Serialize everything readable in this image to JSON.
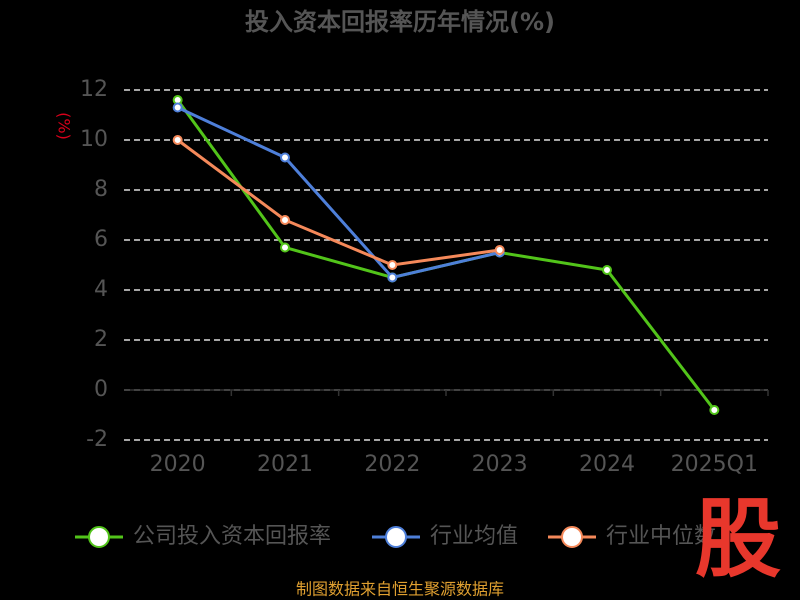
{
  "chart_data": {
    "type": "line",
    "title": "投入资本回报率历年情况(%)",
    "y_label": "(%)",
    "categories": [
      "2020",
      "2021",
      "2022",
      "2023",
      "2024",
      "2025Q1"
    ],
    "series": [
      {
        "name": "公司投入资本回报率",
        "color": "#52c41a",
        "values": [
          11.6,
          5.7,
          4.5,
          5.5,
          4.8,
          -0.8
        ]
      },
      {
        "name": "行业均值",
        "color": "#4e7fd9",
        "values": [
          11.3,
          9.3,
          4.5,
          5.5,
          null,
          null
        ]
      },
      {
        "name": "行业中位数",
        "color": "#f5895a",
        "values": [
          10.0,
          6.8,
          5.0,
          5.6,
          null,
          null
        ]
      }
    ],
    "ylim": [
      -2,
      12
    ],
    "yticks": [
      -2,
      0,
      2,
      4,
      6,
      8,
      10,
      12
    ],
    "grid": true,
    "source": "制图数据来自恒生聚源数据库",
    "watermark": "股"
  }
}
